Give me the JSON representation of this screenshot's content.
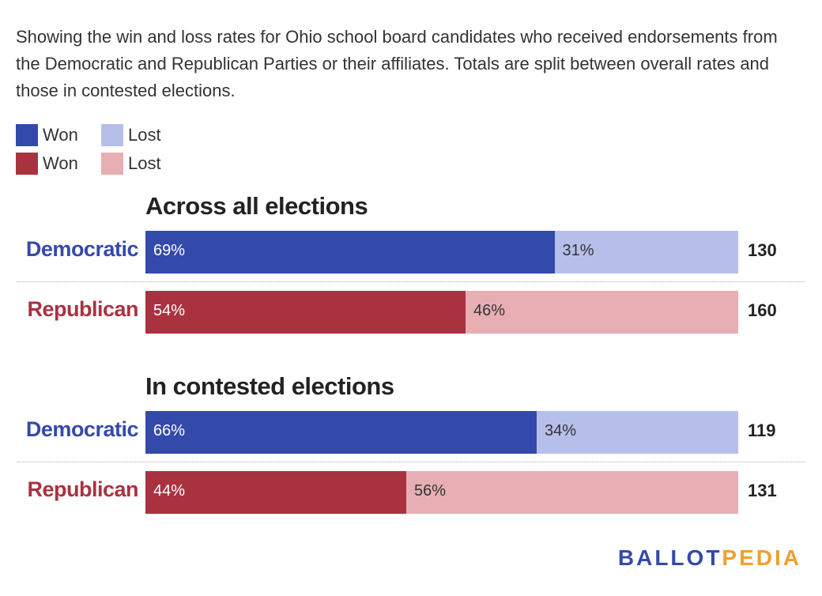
{
  "subtitle": "Showing the win and loss rates for Ohio school board candidates who received endorsements from the Democratic and Republican Parties or their affiliates. Totals are split between overall rates and those in contested elections.",
  "legend": [
    {
      "items": [
        {
          "label": "Won",
          "color": "#344aab"
        },
        {
          "label": "Lost",
          "color": "#b6bfea"
        }
      ]
    },
    {
      "items": [
        {
          "label": "Won",
          "color": "#a93240"
        },
        {
          "label": "Lost",
          "color": "#e7aeb3"
        }
      ]
    }
  ],
  "colors": {
    "dem_won": "#344aab",
    "dem_lost": "#b6bfea",
    "rep_won": "#a93240",
    "rep_lost": "#e7aeb3",
    "dem_label": "#344aab",
    "rep_label": "#a93240"
  },
  "chart_data": {
    "type": "bar",
    "stacked": true,
    "orientation": "horizontal",
    "series_names": [
      "Won",
      "Lost"
    ],
    "groups": [
      {
        "title": "Across all elections",
        "rows": [
          {
            "party": "Democratic",
            "won": 69,
            "lost": 31,
            "won_label": "69%",
            "lost_label": "31%",
            "total": "130"
          },
          {
            "party": "Republican",
            "won": 54,
            "lost": 46,
            "won_label": "54%",
            "lost_label": "46%",
            "total": "160"
          }
        ]
      },
      {
        "title": "In contested elections",
        "rows": [
          {
            "party": "Democratic",
            "won": 66,
            "lost": 34,
            "won_label": "66%",
            "lost_label": "34%",
            "total": "119"
          },
          {
            "party": "Republican",
            "won": 44,
            "lost": 56,
            "won_label": "44%",
            "lost_label": "56%",
            "total": "131"
          }
        ]
      }
    ]
  },
  "logo": {
    "part1": "BALLOT",
    "part2": "PEDIA",
    "color1": "#344aab",
    "color2": "#f0a030"
  }
}
